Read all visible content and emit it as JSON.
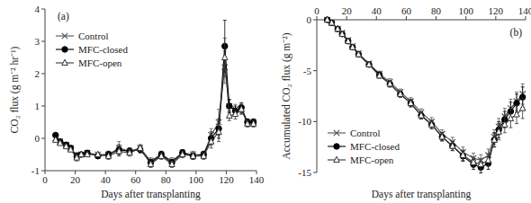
{
  "chart_data": [
    {
      "type": "line",
      "annotation": "(a)",
      "x_label": "Days after transplanting",
      "y_label": "CO₂ flux (g m⁻² hr⁻¹)",
      "x": [
        7,
        10,
        14,
        17,
        21,
        24,
        28,
        35,
        42,
        49,
        56,
        63,
        70,
        77,
        84,
        91,
        98,
        105,
        110,
        115,
        119,
        122,
        126,
        130,
        134,
        138
      ],
      "xlim": [
        0,
        140
      ],
      "xticks": [
        0,
        20,
        40,
        60,
        80,
        100,
        120,
        140
      ],
      "ylim": [
        -1,
        4
      ],
      "yticks": [
        -1,
        0,
        1,
        2,
        3,
        4
      ],
      "legend": "upper left",
      "series": [
        {
          "name": "Control",
          "color": "#555555",
          "marker": "x",
          "line_style": "solid",
          "values": [
            0,
            -0.1,
            -0.2,
            -0.3,
            -0.55,
            -0.5,
            -0.45,
            -0.5,
            -0.5,
            -0.3,
            -0.4,
            -0.3,
            -0.7,
            -0.5,
            -0.7,
            -0.45,
            -0.5,
            -0.5,
            0.1,
            0.5,
            2.2,
            1.0,
            0.9,
            0.9,
            0.5,
            0.5
          ],
          "errors": [
            0.05,
            0.05,
            0.05,
            0.05,
            0.1,
            0.05,
            0.05,
            0.05,
            0.1,
            0.2,
            0.1,
            0.1,
            0.1,
            0.1,
            0.1,
            0.1,
            0.1,
            0.1,
            0.2,
            0.4,
            0.5,
            0.2,
            0.15,
            0.15,
            0.1,
            0.1
          ]
        },
        {
          "name": "MFC-closed",
          "color": "#000000",
          "marker": "circle",
          "line_style": "solid",
          "values": [
            0.1,
            -0.1,
            -0.2,
            -0.3,
            -0.55,
            -0.5,
            -0.45,
            -0.55,
            -0.5,
            -0.35,
            -0.4,
            -0.35,
            -0.75,
            -0.5,
            -0.75,
            -0.45,
            -0.55,
            -0.5,
            0.0,
            0.3,
            2.85,
            1.0,
            0.85,
            0.95,
            0.5,
            0.5
          ],
          "errors": [
            0.05,
            0.05,
            0.05,
            0.05,
            0.1,
            0.05,
            0.05,
            0.05,
            0.1,
            0.15,
            0.1,
            0.1,
            0.1,
            0.1,
            0.1,
            0.1,
            0.1,
            0.1,
            0.2,
            0.3,
            0.8,
            0.2,
            0.15,
            0.15,
            0.1,
            0.1
          ]
        },
        {
          "name": "MFC-open",
          "color": "#333333",
          "marker": "open-triangle",
          "line_style": "solid",
          "values": [
            -0.05,
            -0.15,
            -0.25,
            -0.35,
            -0.6,
            -0.5,
            -0.5,
            -0.5,
            -0.55,
            -0.4,
            -0.45,
            -0.3,
            -0.8,
            -0.55,
            -0.8,
            -0.5,
            -0.55,
            -0.55,
            -0.1,
            0.2,
            2.5,
            0.7,
            0.75,
            0.9,
            0.45,
            0.45
          ],
          "errors": [
            0.05,
            0.05,
            0.05,
            0.05,
            0.1,
            0.05,
            0.05,
            0.05,
            0.1,
            0.15,
            0.1,
            0.1,
            0.1,
            0.1,
            0.1,
            0.1,
            0.1,
            0.1,
            0.2,
            0.3,
            0.6,
            0.15,
            0.15,
            0.15,
            0.1,
            0.1
          ]
        }
      ]
    },
    {
      "type": "line",
      "annotation": "(b)",
      "x_label": "Days after transplanting",
      "y_label": "Accumulated CO₂ flux (g m⁻²)",
      "x": [
        7,
        10,
        14,
        17,
        21,
        24,
        28,
        35,
        42,
        49,
        56,
        63,
        70,
        77,
        84,
        91,
        98,
        105,
        110,
        115,
        119,
        122,
        126,
        130,
        134,
        138
      ],
      "xlim": [
        0,
        140
      ],
      "xticks": [
        0,
        20,
        40,
        60,
        80,
        100,
        120,
        140
      ],
      "ylim": [
        -15,
        0
      ],
      "yticks": [
        -15,
        -10,
        -5,
        0
      ],
      "legend": "lower left",
      "series": [
        {
          "name": "Control",
          "color": "#555555",
          "marker": "x",
          "line_style": "solid",
          "values": [
            0,
            -0.3,
            -0.9,
            -1.3,
            -2.0,
            -2.6,
            -3.3,
            -4.3,
            -5.3,
            -6.1,
            -7.1,
            -8.0,
            -9.1,
            -10.0,
            -11.2,
            -12.0,
            -13.0,
            -13.6,
            -13.8,
            -13.3,
            -11.5,
            -10.5,
            -9.5,
            -8.7,
            -8.0,
            -7.3
          ],
          "errors": [
            0,
            0.05,
            0.1,
            0.1,
            0.15,
            0.15,
            0.2,
            0.2,
            0.25,
            0.3,
            0.3,
            0.35,
            0.35,
            0.4,
            0.4,
            0.45,
            0.5,
            0.5,
            0.55,
            0.6,
            0.7,
            0.8,
            0.8,
            0.9,
            0.9,
            1.0
          ]
        },
        {
          "name": "MFC-closed",
          "color": "#000000",
          "marker": "circle",
          "line_style": "solid",
          "values": [
            0,
            -0.3,
            -0.9,
            -1.4,
            -2.1,
            -2.7,
            -3.4,
            -4.4,
            -5.4,
            -6.3,
            -7.3,
            -8.2,
            -9.4,
            -10.3,
            -11.5,
            -12.4,
            -13.4,
            -14.2,
            -14.5,
            -14.1,
            -11.8,
            -10.8,
            -9.8,
            -9.0,
            -8.2,
            -7.6
          ],
          "errors": [
            0,
            0.05,
            0.1,
            0.1,
            0.15,
            0.15,
            0.2,
            0.2,
            0.25,
            0.3,
            0.3,
            0.35,
            0.35,
            0.4,
            0.4,
            0.45,
            0.5,
            0.5,
            0.55,
            0.6,
            0.7,
            0.8,
            0.8,
            0.9,
            0.9,
            1.0
          ]
        },
        {
          "name": "MFC-open",
          "color": "#333333",
          "marker": "open-triangle",
          "line_style": "solid",
          "values": [
            0,
            -0.3,
            -0.9,
            -1.4,
            -2.1,
            -2.7,
            -3.4,
            -4.4,
            -5.5,
            -6.3,
            -7.3,
            -8.2,
            -9.4,
            -10.3,
            -11.5,
            -12.4,
            -13.3,
            -14.0,
            -14.2,
            -13.8,
            -11.8,
            -11.0,
            -10.3,
            -9.7,
            -9.3,
            -8.7
          ],
          "errors": [
            0,
            0.05,
            0.1,
            0.1,
            0.15,
            0.15,
            0.2,
            0.2,
            0.25,
            0.3,
            0.3,
            0.35,
            0.35,
            0.4,
            0.4,
            0.45,
            0.5,
            0.5,
            0.55,
            0.6,
            0.7,
            0.8,
            0.8,
            0.9,
            0.9,
            1.0
          ]
        }
      ]
    }
  ]
}
